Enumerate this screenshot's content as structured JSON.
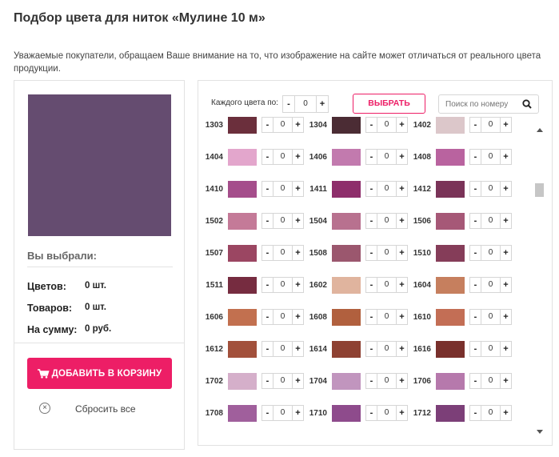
{
  "page": {
    "title": "Подбор цвета для ниток «Мулине 10 м»",
    "notice": "Уважаемые покупатели, обращаем Ваше внимание на то, что изображение на сайте может отличаться от реального цвета продукции."
  },
  "selection": {
    "preview_color": "#654c70",
    "title": "Вы выбрали:",
    "colors_label": "Цветов:",
    "colors_value": "0 шт.",
    "goods_label": "Товаров:",
    "goods_value": "0 шт.",
    "sum_label": "На сумму:",
    "sum_value": "0 руб.",
    "add_to_cart": "ДОБАВИТЬ В КОРЗИНУ",
    "reset": "Сбросить все",
    "reset_icon": "close-circle-icon",
    "cart_icon": "cart-icon"
  },
  "controls": {
    "each_label": "Каждого цвета по:",
    "each_value": "0",
    "minus": "-",
    "plus": "+",
    "choose": "ВЫБРАТЬ",
    "search_placeholder": "Поиск по номеру",
    "search_icon": "search-icon"
  },
  "accent_color": "#ed1e66",
  "colors": [
    {
      "code": "1303",
      "color": "#6b2f3c",
      "qty": "0"
    },
    {
      "code": "1304",
      "color": "#4b2c34",
      "qty": "0"
    },
    {
      "code": "1402",
      "color": "#dcc7ca",
      "qty": "0"
    },
    {
      "code": "1404",
      "color": "#e3a6cc",
      "qty": "0"
    },
    {
      "code": "1406",
      "color": "#c27aae",
      "qty": "0"
    },
    {
      "code": "1408",
      "color": "#b9639f",
      "qty": "0"
    },
    {
      "code": "1410",
      "color": "#a54d8b",
      "qty": "0"
    },
    {
      "code": "1411",
      "color": "#8e2e6b",
      "qty": "0"
    },
    {
      "code": "1412",
      "color": "#7a3358",
      "qty": "0"
    },
    {
      "code": "1502",
      "color": "#c47a98",
      "qty": "0"
    },
    {
      "code": "1504",
      "color": "#b8718f",
      "qty": "0"
    },
    {
      "code": "1506",
      "color": "#a65877",
      "qty": "0"
    },
    {
      "code": "1507",
      "color": "#9b4662",
      "qty": "0"
    },
    {
      "code": "1508",
      "color": "#9b576e",
      "qty": "0"
    },
    {
      "code": "1510",
      "color": "#853d59",
      "qty": "0"
    },
    {
      "code": "1511",
      "color": "#762c40",
      "qty": "0"
    },
    {
      "code": "1602",
      "color": "#e0b49e",
      "qty": "0"
    },
    {
      "code": "1604",
      "color": "#c67f5e",
      "qty": "0"
    },
    {
      "code": "1606",
      "color": "#c2704f",
      "qty": "0"
    },
    {
      "code": "1608",
      "color": "#b1603e",
      "qty": "0"
    },
    {
      "code": "1610",
      "color": "#c36e55",
      "qty": "0"
    },
    {
      "code": "1612",
      "color": "#a2503b",
      "qty": "0"
    },
    {
      "code": "1614",
      "color": "#8e4132",
      "qty": "0"
    },
    {
      "code": "1616",
      "color": "#79302c",
      "qty": "0"
    },
    {
      "code": "1702",
      "color": "#d5afca",
      "qty": "0"
    },
    {
      "code": "1704",
      "color": "#c195be",
      "qty": "0"
    },
    {
      "code": "1706",
      "color": "#b679ac",
      "qty": "0"
    },
    {
      "code": "1708",
      "color": "#a05f9c",
      "qty": "0"
    },
    {
      "code": "1710",
      "color": "#8e4b8c",
      "qty": "0"
    },
    {
      "code": "1712",
      "color": "#7c3f78",
      "qty": "0"
    }
  ]
}
